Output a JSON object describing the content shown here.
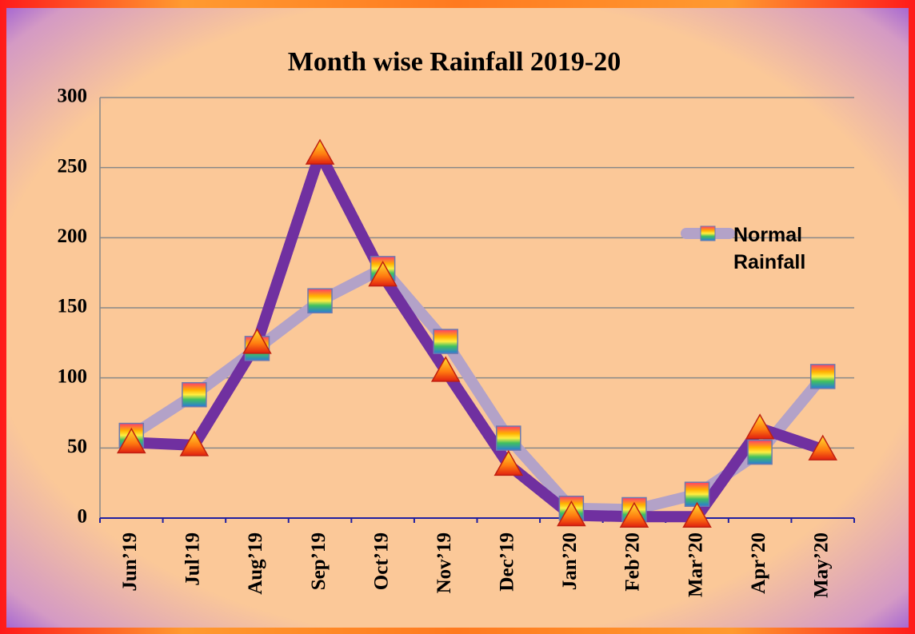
{
  "chart_data": {
    "type": "line",
    "title": "Month wise Rainfall  2019-20",
    "categories": [
      "Jun’19",
      "Jul’19",
      "Aug’19",
      "Sep’19",
      "Oct’19",
      "Nov’19",
      "Dec’19",
      "Jan’20",
      "Feb’20",
      "Mar’20",
      "Apr’20",
      "May’20"
    ],
    "series": [
      {
        "name": "Normal Rainfall",
        "color": "#b3a2c8",
        "marker": "square",
        "values": [
          59,
          88,
          121,
          155,
          178,
          126,
          57,
          7,
          6,
          17,
          47,
          101
        ]
      },
      {
        "color": "#7030a0",
        "marker": "triangle",
        "values": [
          54,
          52,
          125,
          260,
          173,
          105,
          38,
          2,
          1,
          1,
          64,
          49
        ]
      }
    ],
    "ylim": [
      0,
      300
    ],
    "yticks": [
      0,
      50,
      100,
      150,
      200,
      250,
      300
    ],
    "grid": true,
    "legend": "right"
  }
}
